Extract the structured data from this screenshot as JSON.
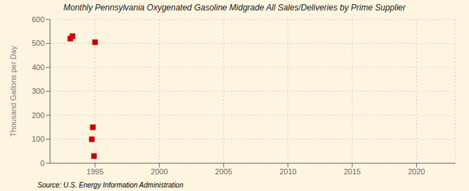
{
  "chart_data": {
    "type": "scatter",
    "title": "Monthly Pennsylvania Oxygenated Gasoline Midgrade All Sales/Deliveries by Prime Supplier",
    "ylabel": "Thousand Gallons per Day",
    "annotation": "Source: U.S. Energy Information Administration",
    "x": [
      1993.08,
      1993.25,
      1994.75,
      1994.83,
      1994.92,
      1995.0
    ],
    "values": [
      520,
      530,
      100,
      150,
      30,
      505
    ],
    "color": "#cc0000",
    "marker": "square",
    "xlim": [
      1991.5,
      2023
    ],
    "ylim": [
      0,
      600
    ],
    "xticks": [
      1995,
      2000,
      2005,
      2010,
      2015,
      2020
    ],
    "yticks": [
      0,
      100,
      200,
      300,
      400,
      500,
      600
    ],
    "grid": true
  }
}
